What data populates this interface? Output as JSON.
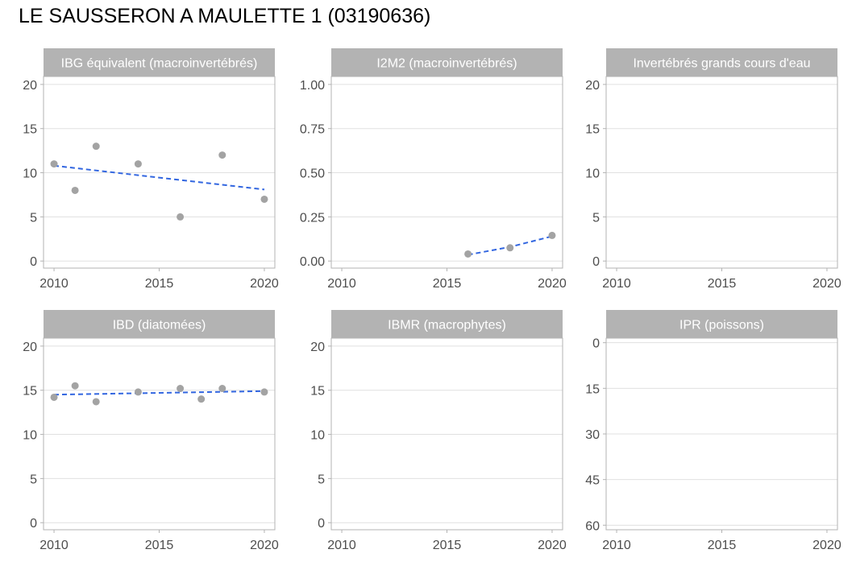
{
  "title": "LE SAUSSERON A MAULETTE 1 (03190636)",
  "colors": {
    "point": "#a3a3a3",
    "trend": "#3266e0",
    "strip": "#b3b3b3",
    "strip_text": "#ffffff",
    "grid": "#e0e0e0",
    "border": "#b3b3b3",
    "tick_text": "#4d4d4d"
  },
  "chart_data": [
    {
      "type": "scatter",
      "title": "IBG équivalent (macroinvertébrés)",
      "xlim": [
        2009.5,
        2020.5
      ],
      "ylim": [
        -0.8,
        20.9
      ],
      "x_ticks": [
        2010,
        2015,
        2020
      ],
      "y_ticks": [
        0,
        5,
        10,
        15,
        20
      ],
      "y_tick_labels": [
        "0",
        "5",
        "10",
        "15",
        "20"
      ],
      "y_reversed": false,
      "points": [
        {
          "x": 2010,
          "y": 11
        },
        {
          "x": 2011,
          "y": 8
        },
        {
          "x": 2012,
          "y": 13
        },
        {
          "x": 2014,
          "y": 11
        },
        {
          "x": 2016,
          "y": 5
        },
        {
          "x": 2018,
          "y": 12
        },
        {
          "x": 2020,
          "y": 7
        }
      ],
      "trend": [
        {
          "x": 2010,
          "y": 10.8
        },
        {
          "x": 2020,
          "y": 8.1
        }
      ]
    },
    {
      "type": "scatter",
      "title": "I2M2 (macroinvertébrés)",
      "xlim": [
        2009.5,
        2020.5
      ],
      "ylim": [
        -0.04,
        1.045
      ],
      "x_ticks": [
        2010,
        2015,
        2020
      ],
      "y_ticks": [
        0,
        0.25,
        0.5,
        0.75,
        1.0
      ],
      "y_tick_labels": [
        "0.00",
        "0.25",
        "0.50",
        "0.75",
        "1.00"
      ],
      "y_reversed": false,
      "points": [
        {
          "x": 2016,
          "y": 0.04
        },
        {
          "x": 2018,
          "y": 0.075
        },
        {
          "x": 2020,
          "y": 0.145
        }
      ],
      "trend": [
        {
          "x": 2016,
          "y": 0.035
        },
        {
          "x": 2018,
          "y": 0.08
        },
        {
          "x": 2020,
          "y": 0.14
        }
      ]
    },
    {
      "type": "scatter",
      "title": "Invertébrés grands cours d'eau",
      "xlim": [
        2009.5,
        2020.5
      ],
      "ylim": [
        -0.8,
        20.9
      ],
      "x_ticks": [
        2010,
        2015,
        2020
      ],
      "y_ticks": [
        0,
        5,
        10,
        15,
        20
      ],
      "y_tick_labels": [
        "0",
        "5",
        "10",
        "15",
        "20"
      ],
      "y_reversed": false,
      "points": [],
      "trend": []
    },
    {
      "type": "scatter",
      "title": "IBD (diatomées)",
      "xlim": [
        2009.5,
        2020.5
      ],
      "ylim": [
        -0.8,
        20.9
      ],
      "x_ticks": [
        2010,
        2015,
        2020
      ],
      "y_ticks": [
        0,
        5,
        10,
        15,
        20
      ],
      "y_tick_labels": [
        "0",
        "5",
        "10",
        "15",
        "20"
      ],
      "y_reversed": false,
      "points": [
        {
          "x": 2010,
          "y": 14.2
        },
        {
          "x": 2011,
          "y": 15.5
        },
        {
          "x": 2012,
          "y": 13.7
        },
        {
          "x": 2014,
          "y": 14.8
        },
        {
          "x": 2016,
          "y": 15.2
        },
        {
          "x": 2017,
          "y": 14.0
        },
        {
          "x": 2018,
          "y": 15.2
        },
        {
          "x": 2020,
          "y": 14.8
        }
      ],
      "trend": [
        {
          "x": 2010,
          "y": 14.5
        },
        {
          "x": 2020,
          "y": 14.9
        }
      ]
    },
    {
      "type": "scatter",
      "title": "IBMR (macrophytes)",
      "xlim": [
        2009.5,
        2020.5
      ],
      "ylim": [
        -0.8,
        20.9
      ],
      "x_ticks": [
        2010,
        2015,
        2020
      ],
      "y_ticks": [
        0,
        5,
        10,
        15,
        20
      ],
      "y_tick_labels": [
        "0",
        "5",
        "10",
        "15",
        "20"
      ],
      "y_reversed": false,
      "points": [],
      "trend": []
    },
    {
      "type": "scatter",
      "title": "IPR (poissons)",
      "xlim": [
        2009.5,
        2020.5
      ],
      "ylim": [
        -1.5,
        61.5
      ],
      "x_ticks": [
        2010,
        2015,
        2020
      ],
      "y_ticks": [
        0,
        15,
        30,
        45,
        60
      ],
      "y_tick_labels": [
        "0",
        "15",
        "30",
        "45",
        "60"
      ],
      "y_reversed": true,
      "points": [],
      "trend": []
    }
  ]
}
